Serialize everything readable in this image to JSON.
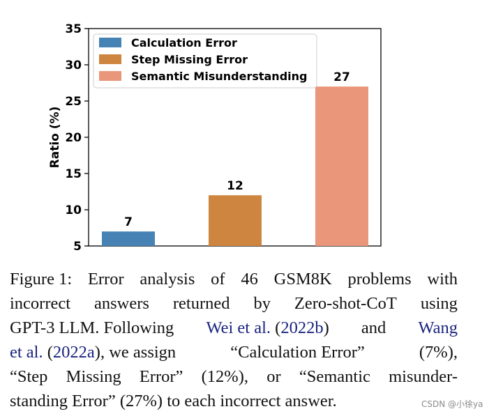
{
  "chart_data": {
    "type": "bar",
    "categories": [
      "Calculation Error",
      "Step Missing Error",
      "Semantic Misunderstanding"
    ],
    "values": [
      7,
      12,
      27
    ],
    "colors": [
      "#4682b4",
      "#cd853f",
      "#e9967a"
    ],
    "data_labels": [
      "7",
      "12",
      "27"
    ],
    "ylabel": "Ratio (%)",
    "ylim": [
      5,
      35
    ],
    "yticks": [
      "5",
      "10",
      "15",
      "20",
      "25",
      "30",
      "35"
    ],
    "legend": [
      "Calculation Error",
      "Step Missing Error",
      "Semantic Misunderstanding"
    ],
    "legend_position": "top-left",
    "grid": false
  },
  "caption": {
    "line1": [
      "Figure 1:",
      "Error",
      "analysis",
      "of",
      "46",
      "GSM8K",
      "problems",
      "with"
    ],
    "line2": [
      "incorrect",
      "answers",
      "returned",
      "by",
      "Zero-shot-CoT",
      "using"
    ],
    "line3_a": "GPT-3 LLM. Following",
    "line3_cite1": "Wei et al.",
    "line3_cite1_year": "2022b",
    "line3_b": "and",
    "line3_cite2": "Wang",
    "line4_cite2": "et al.",
    "line4_cite2_year": "2022a",
    "line4_b": ", we assign",
    "line4_c": "“Calculation Error”",
    "line4_d": "(7%),",
    "line5": [
      "“Step",
      "Missing",
      "Error”",
      "(12%),",
      "or",
      "“Semantic",
      "misunder-"
    ],
    "line6": "standing Error” (27%) to each incorrect answer."
  },
  "watermark": "CSDN @小徐ya"
}
